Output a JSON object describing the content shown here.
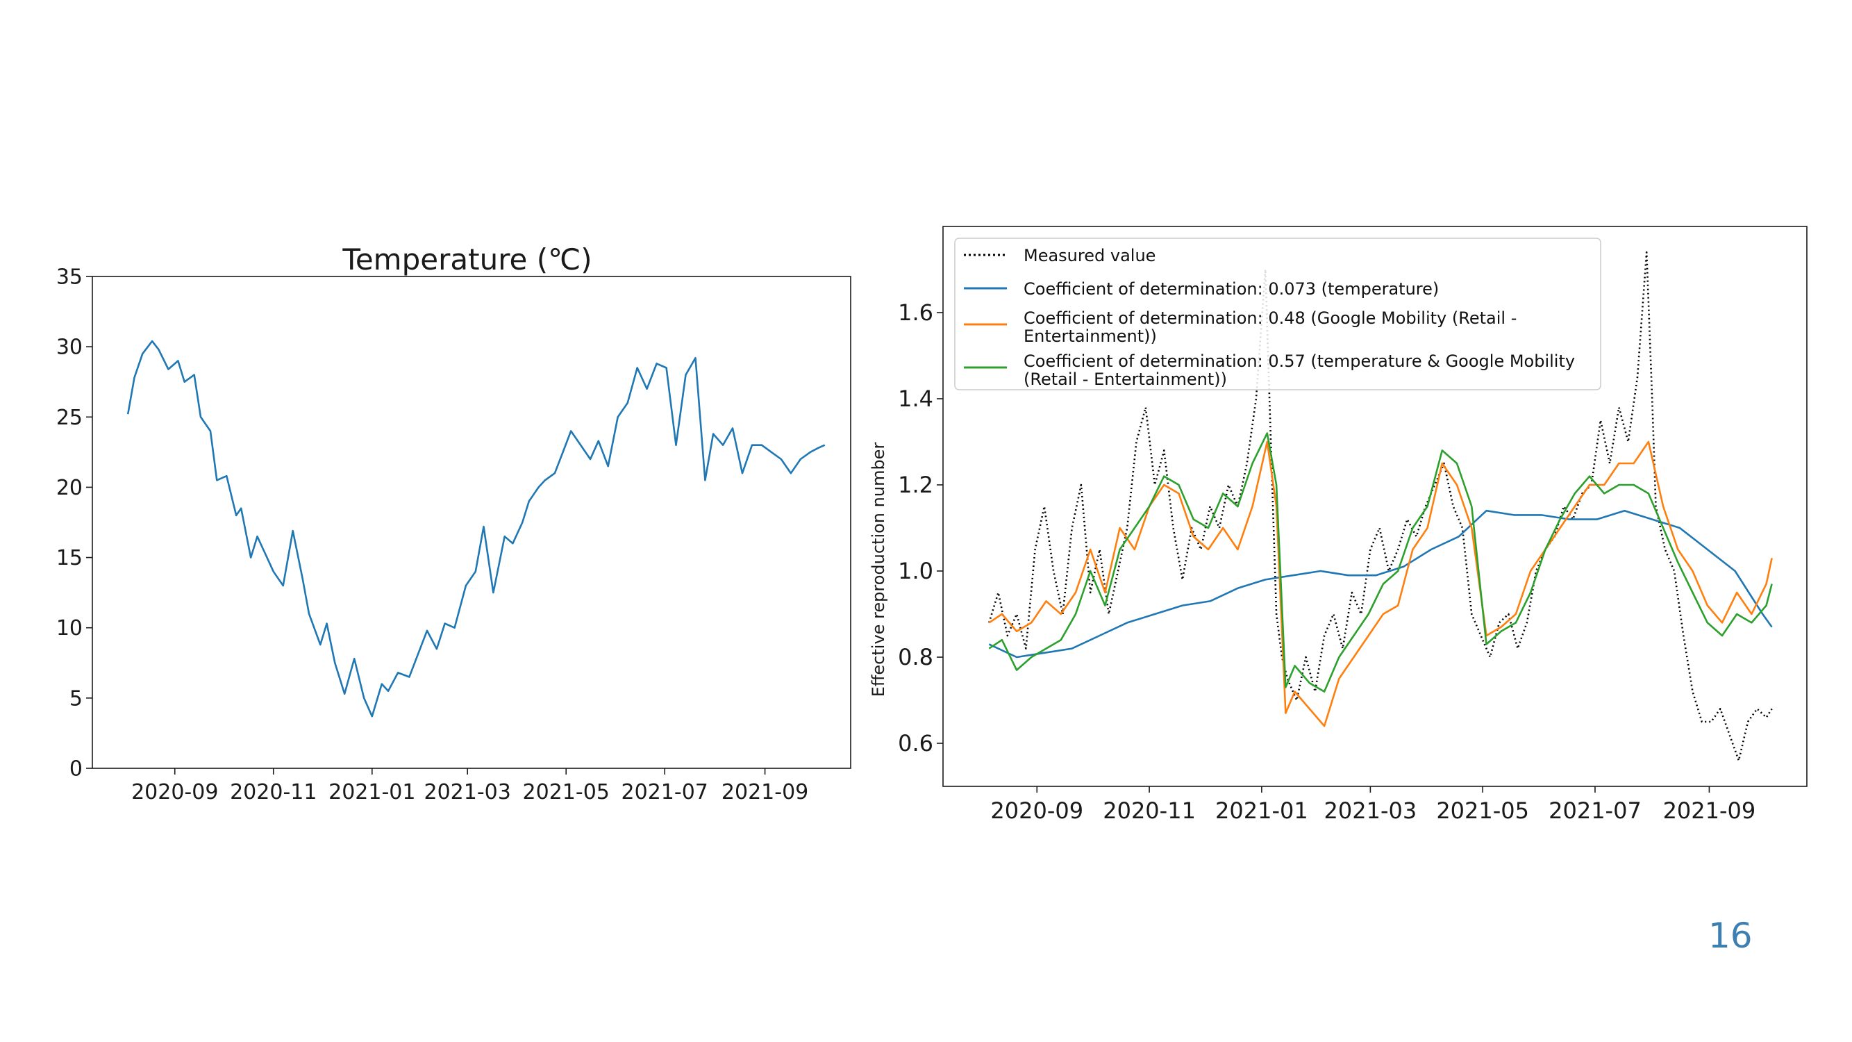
{
  "page_number": "16",
  "colors": {
    "blue": "#1f77b4",
    "orange": "#ff7f0e",
    "green": "#2ca02c",
    "black": "#000000",
    "page_number": "#3d7fb0"
  },
  "chart_data": [
    {
      "type": "line",
      "title": "Temperature (℃)",
      "xlabel": "",
      "ylabel": "",
      "xlim": [
        "2020-07-12",
        "2021-10-24"
      ],
      "ylim": [
        0,
        35
      ],
      "x_ticks": [
        "2020-09",
        "2020-11",
        "2021-01",
        "2021-03",
        "2021-05",
        "2021-07",
        "2021-09"
      ],
      "y_ticks": [
        "0",
        "5",
        "10",
        "15",
        "20",
        "25",
        "30",
        "35"
      ],
      "grid": false,
      "series": [
        {
          "color": "#1f77b4",
          "x": [
            "2020-08-03",
            "2020-08-07",
            "2020-08-12",
            "2020-08-18",
            "2020-08-22",
            "2020-08-28",
            "2020-09-03",
            "2020-09-07",
            "2020-09-13",
            "2020-09-17",
            "2020-09-23",
            "2020-09-27",
            "2020-10-03",
            "2020-10-09",
            "2020-10-12",
            "2020-10-18",
            "2020-10-22",
            "2020-10-28",
            "2020-11-01",
            "2020-11-07",
            "2020-11-13",
            "2020-11-19",
            "2020-11-23",
            "2020-11-30",
            "2020-12-04",
            "2020-12-09",
            "2020-12-15",
            "2020-12-21",
            "2020-12-27",
            "2021-01-01",
            "2021-01-07",
            "2021-01-11",
            "2021-01-17",
            "2021-01-24",
            "2021-01-29",
            "2021-02-04",
            "2021-02-10",
            "2021-02-15",
            "2021-02-21",
            "2021-02-28",
            "2021-03-06",
            "2021-03-11",
            "2021-03-17",
            "2021-03-24",
            "2021-03-29",
            "2021-04-04",
            "2021-04-08",
            "2021-04-14",
            "2021-04-18",
            "2021-04-24",
            "2021-04-29",
            "2021-05-04",
            "2021-05-10",
            "2021-05-16",
            "2021-05-21",
            "2021-05-27",
            "2021-06-02",
            "2021-06-08",
            "2021-06-14",
            "2021-06-20",
            "2021-06-26",
            "2021-07-02",
            "2021-07-08",
            "2021-07-14",
            "2021-07-20",
            "2021-07-26",
            "2021-07-31",
            "2021-08-06",
            "2021-08-12",
            "2021-08-18",
            "2021-08-24",
            "2021-08-30",
            "2021-09-05",
            "2021-09-11",
            "2021-09-17",
            "2021-09-23",
            "2021-09-29",
            "2021-10-04",
            "2021-10-08"
          ],
          "values": [
            25.2,
            27.8,
            29.5,
            30.4,
            29.8,
            28.4,
            29.0,
            27.5,
            28.0,
            25.0,
            24.0,
            20.5,
            20.8,
            18.0,
            18.5,
            15.0,
            16.5,
            15.0,
            14.0,
            13.0,
            16.9,
            13.5,
            11.0,
            8.8,
            10.3,
            7.5,
            5.3,
            7.8,
            5.0,
            3.7,
            6.0,
            5.5,
            6.8,
            6.5,
            8.0,
            9.8,
            8.5,
            10.3,
            10.0,
            13.0,
            14.0,
            17.2,
            12.5,
            16.5,
            16.0,
            17.5,
            19.0,
            20.0,
            20.5,
            21.0,
            22.5,
            24.0,
            23.0,
            22.0,
            23.3,
            21.5,
            25.0,
            26.0,
            28.5,
            27.0,
            28.8,
            28.5,
            23.0,
            28.0,
            29.2,
            20.5,
            23.8,
            23.0,
            24.2,
            21.0,
            23.0,
            23.0,
            22.5,
            22.0,
            21.0,
            22.0,
            22.5,
            22.8,
            23.0
          ]
        }
      ]
    },
    {
      "type": "line",
      "title": "",
      "xlabel": "",
      "ylabel": "Effective reproduction number",
      "xlim": [
        "2020-07-12",
        "2021-10-24"
      ],
      "ylim": [
        0.5,
        1.8
      ],
      "x_ticks": [
        "2020-09",
        "2020-11",
        "2021-01",
        "2021-03",
        "2021-05",
        "2021-07",
        "2021-09"
      ],
      "y_ticks": [
        "0.6",
        "0.8",
        "1.0",
        "1.2",
        "1.4",
        "1.6"
      ],
      "grid": false,
      "legend_position": "top-left",
      "series": [
        {
          "name": "Measured value",
          "style": "dotted",
          "color": "#000000",
          "x": [
            "2020-08-06",
            "2020-08-11",
            "2020-08-16",
            "2020-08-21",
            "2020-08-26",
            "2020-08-31",
            "2020-09-05",
            "2020-09-10",
            "2020-09-15",
            "2020-09-20",
            "2020-09-25",
            "2020-09-30",
            "2020-10-05",
            "2020-10-10",
            "2020-10-15",
            "2020-10-20",
            "2020-10-25",
            "2020-10-30",
            "2020-11-04",
            "2020-11-09",
            "2020-11-14",
            "2020-11-19",
            "2020-11-24",
            "2020-11-29",
            "2020-12-04",
            "2020-12-09",
            "2020-12-14",
            "2020-12-19",
            "2020-12-24",
            "2020-12-29",
            "2021-01-03",
            "2021-01-06",
            "2021-01-09",
            "2021-01-12",
            "2021-01-15",
            "2021-01-20",
            "2021-01-25",
            "2021-01-30",
            "2021-02-04",
            "2021-02-09",
            "2021-02-14",
            "2021-02-19",
            "2021-02-24",
            "2021-03-01",
            "2021-03-06",
            "2021-03-11",
            "2021-03-16",
            "2021-03-21",
            "2021-03-26",
            "2021-03-31",
            "2021-04-05",
            "2021-04-10",
            "2021-04-15",
            "2021-04-20",
            "2021-04-25",
            "2021-04-30",
            "2021-05-05",
            "2021-05-10",
            "2021-05-15",
            "2021-05-20",
            "2021-05-25",
            "2021-05-30",
            "2021-06-04",
            "2021-06-09",
            "2021-06-14",
            "2021-06-19",
            "2021-06-24",
            "2021-06-29",
            "2021-07-04",
            "2021-07-09",
            "2021-07-14",
            "2021-07-19",
            "2021-07-24",
            "2021-07-29",
            "2021-08-01",
            "2021-08-03",
            "2021-08-08",
            "2021-08-13",
            "2021-08-18",
            "2021-08-23",
            "2021-08-28",
            "2021-09-02",
            "2021-09-07",
            "2021-09-12",
            "2021-09-17",
            "2021-09-22",
            "2021-09-27",
            "2021-10-02",
            "2021-10-05"
          ],
          "values": [
            0.88,
            0.95,
            0.85,
            0.9,
            0.82,
            1.05,
            1.15,
            1.0,
            0.9,
            1.1,
            1.2,
            0.95,
            1.05,
            0.9,
            1.0,
            1.1,
            1.3,
            1.38,
            1.2,
            1.28,
            1.1,
            0.98,
            1.1,
            1.05,
            1.15,
            1.1,
            1.2,
            1.15,
            1.25,
            1.4,
            1.7,
            1.3,
            0.9,
            0.8,
            0.75,
            0.7,
            0.8,
            0.72,
            0.85,
            0.9,
            0.82,
            0.95,
            0.9,
            1.05,
            1.1,
            1.0,
            1.05,
            1.12,
            1.08,
            1.15,
            1.2,
            1.25,
            1.15,
            1.1,
            0.9,
            0.85,
            0.8,
            0.88,
            0.9,
            0.82,
            0.88,
            1.0,
            1.05,
            1.08,
            1.15,
            1.12,
            1.18,
            1.2,
            1.35,
            1.25,
            1.38,
            1.3,
            1.45,
            1.74,
            1.4,
            1.15,
            1.05,
            1.0,
            0.85,
            0.72,
            0.65,
            0.65,
            0.68,
            0.62,
            0.56,
            0.65,
            0.68,
            0.66,
            0.68
          ]
        },
        {
          "name": "Coefficient of determination: 0.073 (temperature)",
          "style": "solid",
          "color": "#1f77b4",
          "x": [
            "2020-08-06",
            "2020-08-21",
            "2020-09-05",
            "2020-09-20",
            "2020-10-05",
            "2020-10-20",
            "2020-11-04",
            "2020-11-19",
            "2020-12-04",
            "2020-12-19",
            "2021-01-03",
            "2021-01-18",
            "2021-02-02",
            "2021-02-17",
            "2021-03-04",
            "2021-03-19",
            "2021-04-03",
            "2021-04-18",
            "2021-05-03",
            "2021-05-18",
            "2021-06-02",
            "2021-06-17",
            "2021-07-02",
            "2021-07-17",
            "2021-08-01",
            "2021-08-16",
            "2021-08-31",
            "2021-09-15",
            "2021-09-30",
            "2021-10-05"
          ],
          "values": [
            0.83,
            0.8,
            0.81,
            0.82,
            0.85,
            0.88,
            0.9,
            0.92,
            0.93,
            0.96,
            0.98,
            0.99,
            1.0,
            0.99,
            0.99,
            1.01,
            1.05,
            1.08,
            1.14,
            1.13,
            1.13,
            1.12,
            1.12,
            1.14,
            1.12,
            1.1,
            1.05,
            1.0,
            0.9,
            0.87
          ]
        },
        {
          "name": "Coefficient of determination: 0.48 (Google Mobility (Retail - Entertainment))",
          "style": "solid",
          "color": "#ff7f0e",
          "x": [
            "2020-08-06",
            "2020-08-13",
            "2020-08-21",
            "2020-08-29",
            "2020-09-06",
            "2020-09-14",
            "2020-09-22",
            "2020-09-30",
            "2020-10-08",
            "2020-10-16",
            "2020-10-24",
            "2020-11-01",
            "2020-11-09",
            "2020-11-17",
            "2020-11-25",
            "2020-12-03",
            "2020-12-11",
            "2020-12-19",
            "2020-12-27",
            "2021-01-04",
            "2021-01-09",
            "2021-01-14",
            "2021-01-19",
            "2021-01-27",
            "2021-02-04",
            "2021-02-12",
            "2021-02-20",
            "2021-02-28",
            "2021-03-08",
            "2021-03-16",
            "2021-03-24",
            "2021-04-01",
            "2021-04-09",
            "2021-04-17",
            "2021-04-25",
            "2021-05-03",
            "2021-05-11",
            "2021-05-19",
            "2021-05-27",
            "2021-06-04",
            "2021-06-12",
            "2021-06-20",
            "2021-06-28",
            "2021-07-06",
            "2021-07-14",
            "2021-07-22",
            "2021-07-30",
            "2021-08-07",
            "2021-08-15",
            "2021-08-23",
            "2021-08-31",
            "2021-09-08",
            "2021-09-16",
            "2021-09-24",
            "2021-10-02",
            "2021-10-05"
          ],
          "values": [
            0.88,
            0.9,
            0.86,
            0.88,
            0.93,
            0.9,
            0.95,
            1.05,
            0.95,
            1.1,
            1.05,
            1.15,
            1.2,
            1.18,
            1.08,
            1.05,
            1.1,
            1.05,
            1.15,
            1.3,
            1.15,
            0.67,
            0.72,
            0.68,
            0.64,
            0.75,
            0.8,
            0.85,
            0.9,
            0.92,
            1.05,
            1.1,
            1.25,
            1.2,
            1.1,
            0.85,
            0.87,
            0.9,
            1.0,
            1.05,
            1.1,
            1.15,
            1.2,
            1.2,
            1.25,
            1.25,
            1.3,
            1.15,
            1.05,
            1.0,
            0.92,
            0.88,
            0.95,
            0.9,
            0.97,
            1.03
          ]
        },
        {
          "name": "Coefficient of determination: 0.57 (temperature & Google Mobility (Retail - Entertainment))",
          "style": "solid",
          "color": "#2ca02c",
          "x": [
            "2020-08-06",
            "2020-08-13",
            "2020-08-21",
            "2020-08-29",
            "2020-09-06",
            "2020-09-14",
            "2020-09-22",
            "2020-09-30",
            "2020-10-08",
            "2020-10-16",
            "2020-10-24",
            "2020-11-01",
            "2020-11-09",
            "2020-11-17",
            "2020-11-25",
            "2020-12-03",
            "2020-12-11",
            "2020-12-19",
            "2020-12-27",
            "2021-01-04",
            "2021-01-09",
            "2021-01-14",
            "2021-01-19",
            "2021-01-27",
            "2021-02-04",
            "2021-02-12",
            "2021-02-20",
            "2021-02-28",
            "2021-03-08",
            "2021-03-16",
            "2021-03-24",
            "2021-04-01",
            "2021-04-09",
            "2021-04-17",
            "2021-04-25",
            "2021-05-03",
            "2021-05-11",
            "2021-05-19",
            "2021-05-27",
            "2021-06-04",
            "2021-06-12",
            "2021-06-20",
            "2021-06-28",
            "2021-07-06",
            "2021-07-14",
            "2021-07-22",
            "2021-07-30",
            "2021-08-07",
            "2021-08-15",
            "2021-08-23",
            "2021-08-31",
            "2021-09-08",
            "2021-09-16",
            "2021-09-24",
            "2021-10-02",
            "2021-10-05"
          ],
          "values": [
            0.82,
            0.84,
            0.77,
            0.8,
            0.82,
            0.84,
            0.9,
            1.0,
            0.92,
            1.05,
            1.1,
            1.15,
            1.22,
            1.2,
            1.12,
            1.1,
            1.18,
            1.15,
            1.25,
            1.32,
            1.2,
            0.73,
            0.78,
            0.74,
            0.72,
            0.8,
            0.85,
            0.9,
            0.97,
            1.0,
            1.1,
            1.15,
            1.28,
            1.25,
            1.15,
            0.83,
            0.86,
            0.88,
            0.95,
            1.05,
            1.12,
            1.18,
            1.22,
            1.18,
            1.2,
            1.2,
            1.18,
            1.1,
            1.02,
            0.95,
            0.88,
            0.85,
            0.9,
            0.88,
            0.92,
            0.97
          ]
        }
      ]
    }
  ]
}
